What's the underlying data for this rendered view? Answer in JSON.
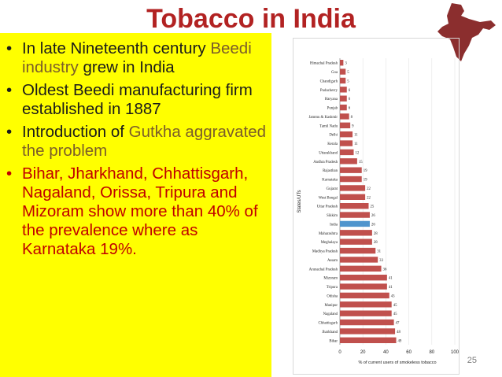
{
  "slide": {
    "title": "Tobacco in India",
    "page_number": "25",
    "bullets": [
      {
        "pre": "In late Nineteenth century ",
        "hl": "Beedi industry",
        "post": " grew in India",
        "red": false
      },
      {
        "pre": "Oldest Beedi manufacturing firm established in 1887",
        "hl": "",
        "post": "",
        "red": false
      },
      {
        "pre": "Introduction of ",
        "hl": "Gutkha aggravated the problem",
        "post": "",
        "red": false
      },
      {
        "pre": "Bihar, Jharkhand, Chhattisgarh, Nagaland, Orissa, Tripura and Mizoram show more than 40% of the prevalence where as Karnataka 19%.",
        "hl": "",
        "post": "",
        "red": true
      }
    ]
  },
  "colors": {
    "title": "#b22222",
    "panel": "#ffff00",
    "bar": "#c0504d",
    "bar_india": "#4f94cd",
    "map": "#8b2e2e"
  },
  "chart_data": {
    "type": "bar",
    "orientation": "horizontal",
    "ylabel": "States/UTs",
    "xlabel": "% of current users of smokeless tobacco",
    "xlim": [
      0,
      100
    ],
    "xticks": [
      0,
      20,
      40,
      60,
      80,
      100
    ],
    "highlight": "India",
    "categories": [
      "Himachal Pradesh",
      "Goa",
      "Chandigarh",
      "Puducherry",
      "Haryana",
      "Punjab",
      "Jammu & Kashmir",
      "Tamil Nadu",
      "Delhi",
      "Kerala",
      "Uttarakhand",
      "Andhra Pradesh",
      "Rajasthan",
      "Karnataka",
      "Gujarat",
      "West Bengal",
      "Uttar Pradesh",
      "Sikkim",
      "India",
      "Maharashtra",
      "Meghalaya",
      "Madhya Pradesh",
      "Assam",
      "Arunachal Pradesh",
      "Mizoram",
      "Tripura",
      "Odisha",
      "Manipur",
      "Nagaland",
      "Chhattisgarh",
      "Jharkhand",
      "Bihar"
    ],
    "values": [
      3,
      5,
      5,
      6,
      6,
      6,
      8,
      9,
      11,
      11,
      12,
      15,
      19,
      19,
      22,
      22,
      25,
      26,
      26,
      28,
      28,
      31,
      33,
      36,
      41,
      41,
      43,
      45,
      45,
      47,
      48,
      49
    ]
  }
}
